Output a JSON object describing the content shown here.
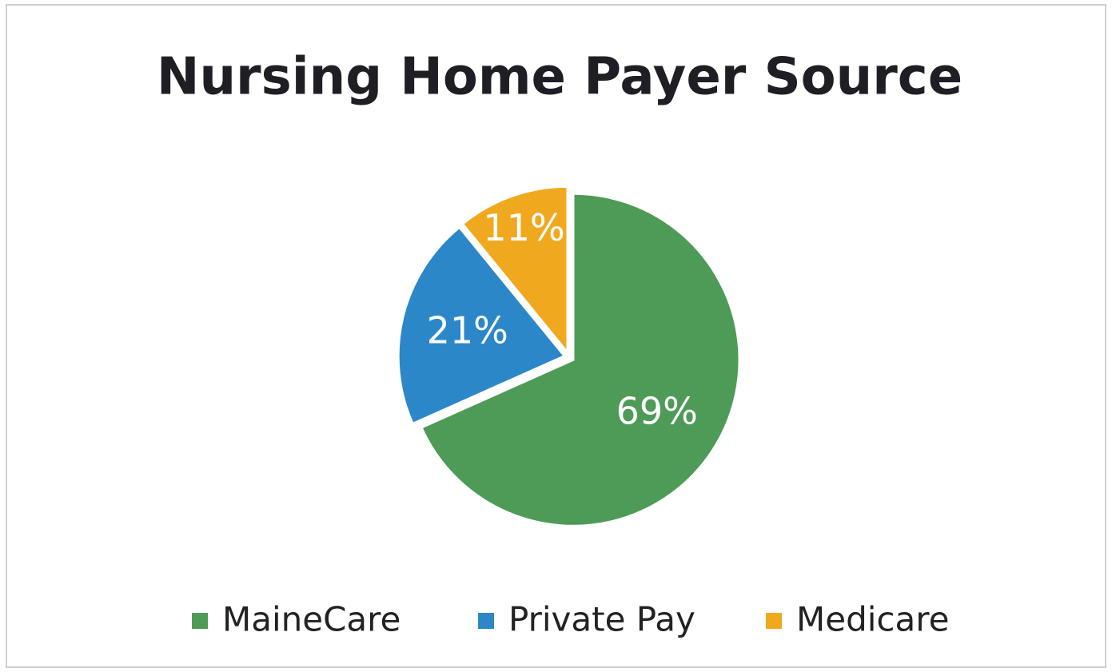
{
  "chart_data": {
    "type": "pie",
    "title": "Nursing Home Payer Source",
    "categories": [
      "MaineCare",
      "Private Pay",
      "Medicare"
    ],
    "values": [
      69,
      21,
      11
    ],
    "value_labels": [
      "69%",
      "21%",
      "11%"
    ],
    "colors": [
      "#4e9b57",
      "#2b87c8",
      "#f0a91e"
    ],
    "legend": "bottom"
  }
}
